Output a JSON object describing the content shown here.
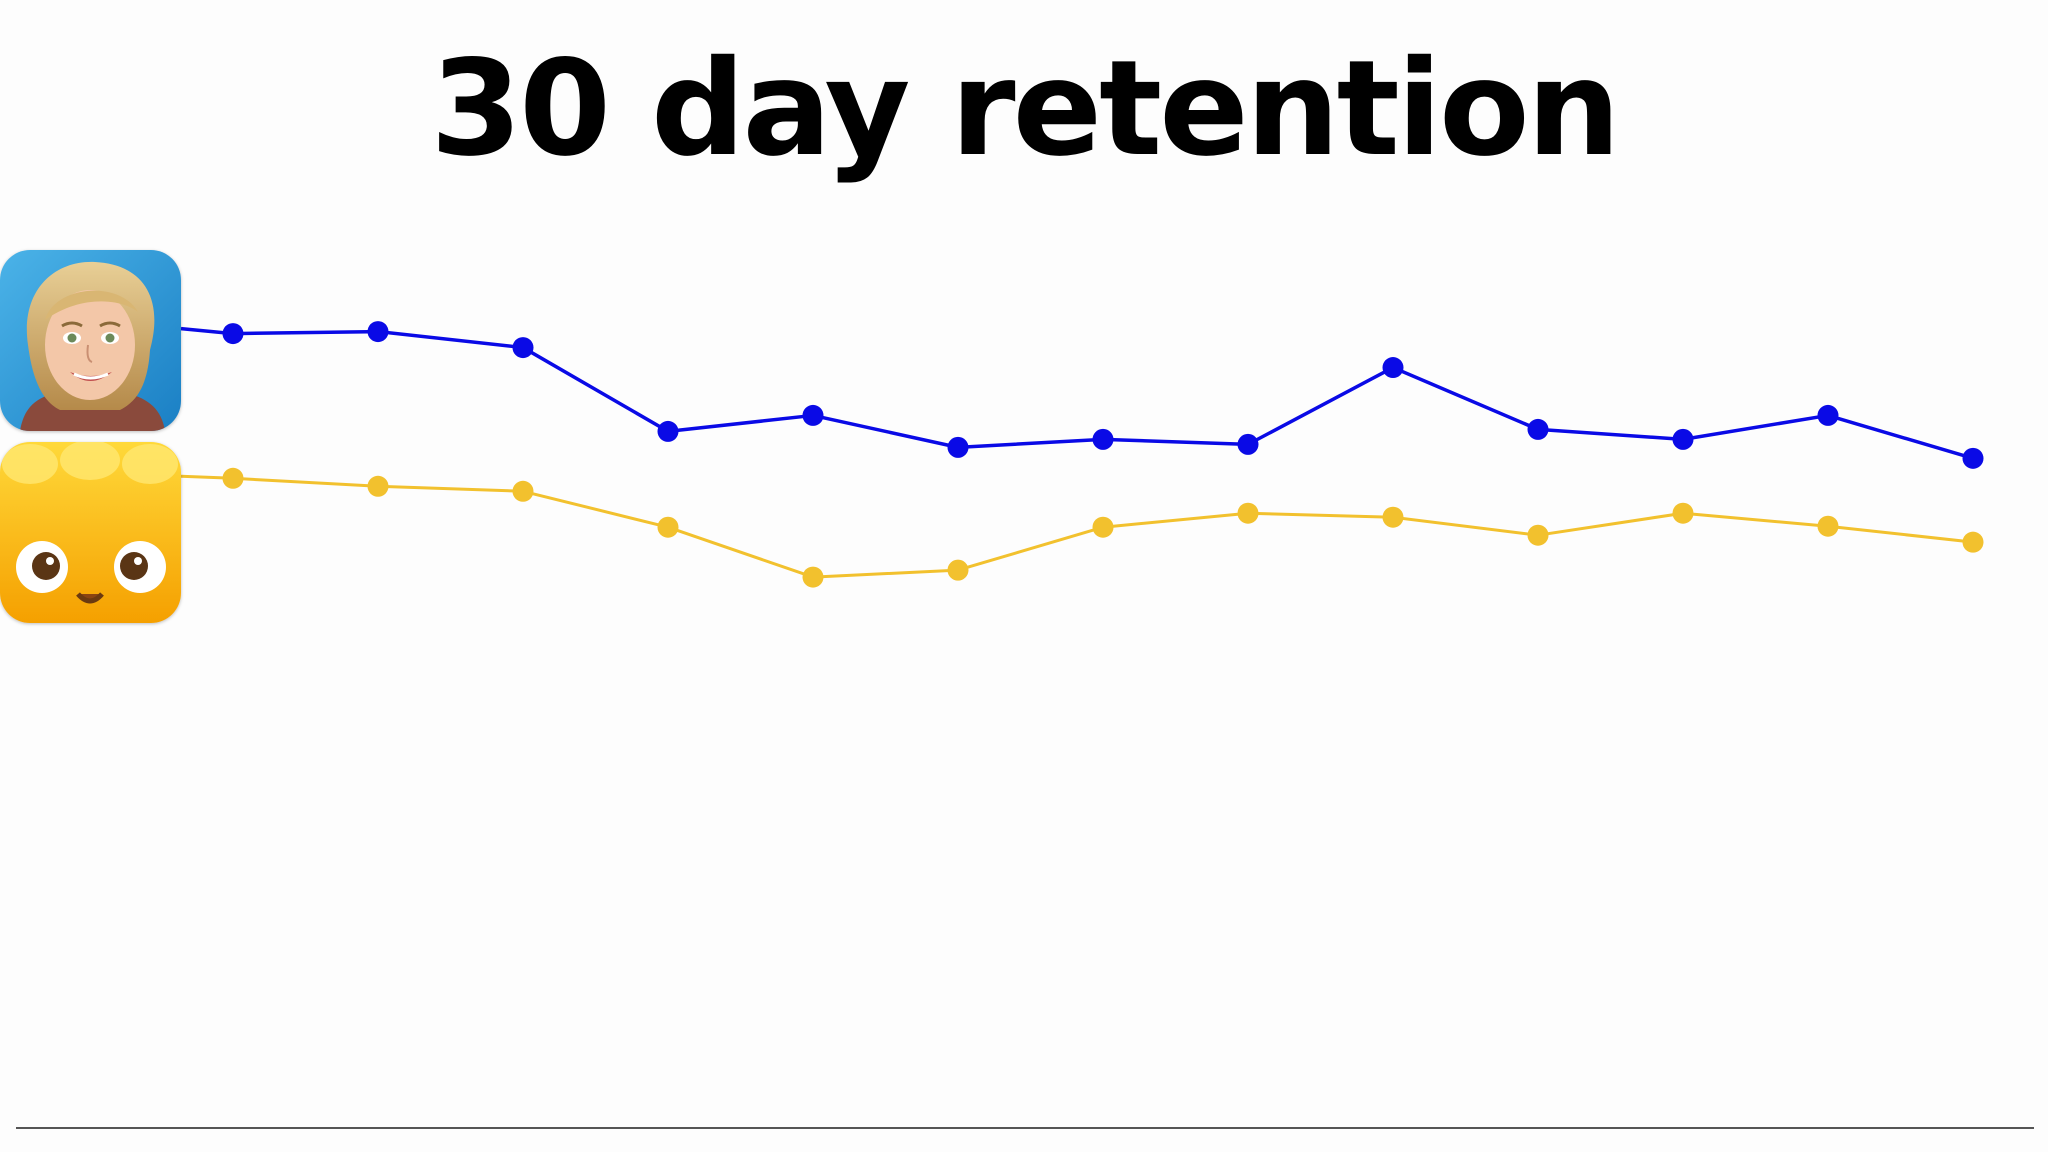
{
  "chart_data": {
    "type": "line",
    "title": "30 day retention",
    "xlabel": "",
    "ylabel": "",
    "x": [
      1,
      2,
      3,
      4,
      5,
      6,
      7,
      8,
      9,
      10,
      11,
      12,
      13
    ],
    "ylim": [
      0,
      100
    ],
    "grid": false,
    "legend": "left (app icons)",
    "series": [
      {
        "icon": "woman-portrait-app-icon",
        "color": "#0a0ae6",
        "start": 80.1,
        "values": [
          79.6,
          79.8,
          78.2,
          69.8,
          71.4,
          68.2,
          69.0,
          68.5,
          76.2,
          70.0,
          69.0,
          71.4,
          67.1
        ]
      },
      {
        "icon": "yellow-jelly-app-icon",
        "color": "#f2c12e",
        "start": 65.3,
        "values": [
          65.1,
          64.3,
          63.8,
          60.2,
          55.2,
          55.9,
          60.2,
          61.6,
          61.2,
          59.4,
          61.6,
          60.3,
          58.7
        ]
      }
    ]
  }
}
